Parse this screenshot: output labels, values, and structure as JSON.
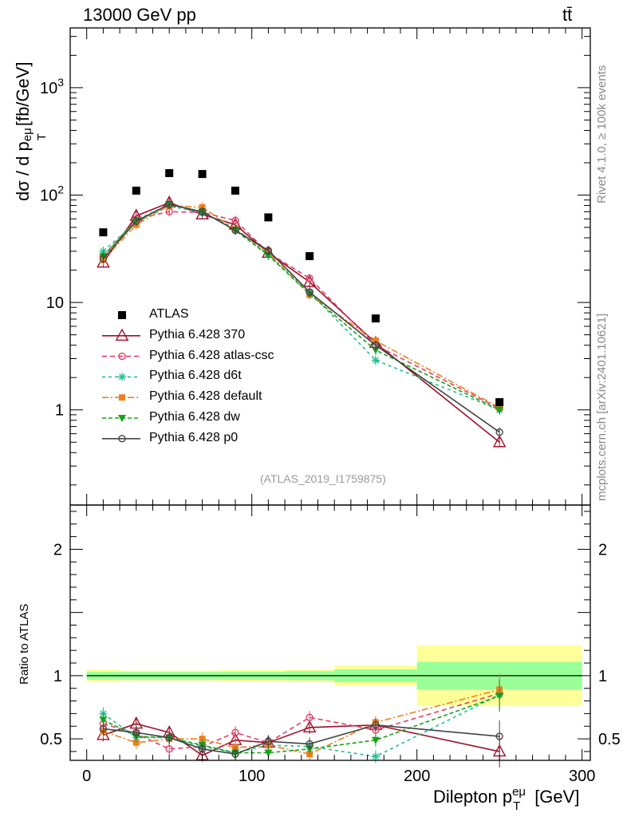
{
  "header": {
    "energy_label": "13000 GeV pp",
    "process_label": "tt̄"
  },
  "side_text": {
    "rivet": "Rivet 4.1.0, ≥ 100k events",
    "mcplots": "mcplots.cern.ch [arXiv:2401.10621]"
  },
  "analysis_ref": "(ATLAS_2019_I1759875)",
  "axis_labels": {
    "upper_y": "dσ / d p",
    "upper_y_sub": "T",
    "upper_y_sup": "eμ",
    "upper_y_unit": " [fb/GeV]",
    "lower_y": "Ratio to ATLAS",
    "x": "Dilepton p",
    "x_sub": "T",
    "x_sup": "eμ",
    "x_unit": " [GeV]"
  },
  "chart_data": {
    "type": "line",
    "x_range": [
      -10,
      305
    ],
    "upper": {
      "yscale": "log",
      "ylim": [
        0.13,
        3600
      ],
      "ticks": [
        1,
        10,
        100,
        1000
      ],
      "tick_labels": [
        "1",
        "10",
        "10^2",
        "10^3"
      ]
    },
    "lower": {
      "ylim": [
        0.33,
        2.35
      ],
      "ticks": [
        0.5,
        1,
        2
      ],
      "tick_labels": [
        "0.5",
        "1",
        "2"
      ]
    },
    "x_ticks": [
      0,
      100,
      200,
      300
    ],
    "x_tick_labels": [
      "0",
      "100",
      "200",
      "300"
    ],
    "bins": [
      [
        0,
        20
      ],
      [
        20,
        40
      ],
      [
        40,
        60
      ],
      [
        60,
        80
      ],
      [
        80,
        100
      ],
      [
        100,
        120
      ],
      [
        120,
        150
      ],
      [
        150,
        200
      ],
      [
        200,
        300
      ]
    ],
    "x_centers": [
      10,
      30,
      50,
      70,
      90,
      110,
      135,
      175,
      250
    ],
    "data": {
      "name": "ATLAS",
      "color": "#000000",
      "values": [
        45,
        110,
        160,
        157,
        110,
        62,
        27,
        7.1,
        1.18
      ],
      "band_inner": [
        0.03,
        0.03,
        0.03,
        0.03,
        0.03,
        0.03,
        0.035,
        0.05,
        0.11
      ],
      "band_outer": [
        0.05,
        0.04,
        0.04,
        0.04,
        0.045,
        0.045,
        0.05,
        0.08,
        0.24
      ]
    },
    "series": [
      {
        "name": "Pythia 6.428 370",
        "color": "#a0102a",
        "dash": "",
        "marker": "triangle-open",
        "values": [
          23.5,
          64,
          85,
          66,
          53,
          29,
          15.5,
          4.2,
          0.5
        ],
        "ratio": [
          0.53,
          0.62,
          0.55,
          0.37,
          0.49,
          0.47,
          0.59,
          0.61,
          0.4
        ]
      },
      {
        "name": "Pythia 6.428 atlas-csc",
        "color": "#e0406a",
        "dash": "6,4",
        "marker": "circle-open",
        "values": [
          27,
          60,
          70,
          69,
          58,
          29,
          16.8,
          4.0,
          1.03
        ],
        "ratio": [
          0.62,
          0.54,
          0.42,
          0.44,
          0.55,
          0.47,
          0.67,
          0.57,
          0.86
        ]
      },
      {
        "name": "Pythia 6.428 d6t",
        "color": "#20c090",
        "dash": "4,4",
        "marker": "star",
        "values": [
          30,
          56,
          79,
          69,
          49,
          28,
          12.5,
          2.9,
          1.0
        ],
        "ratio": [
          0.7,
          0.51,
          0.51,
          0.44,
          0.39,
          0.45,
          0.44,
          0.36,
          0.85
        ]
      },
      {
        "name": "Pythia 6.428 default",
        "color": "#f08020",
        "dash": "8,3,2,3",
        "marker": "square-filled",
        "values": [
          25,
          53,
          80,
          77,
          48,
          29,
          11.8,
          4.4,
          1.05
        ],
        "ratio": [
          0.56,
          0.47,
          0.5,
          0.5,
          0.43,
          0.45,
          0.38,
          0.63,
          0.89
        ]
      },
      {
        "name": "Pythia 6.428 dw",
        "color": "#1aa01a",
        "dash": "5,3",
        "marker": "triangle-down-filled",
        "values": [
          27,
          58,
          82,
          70,
          47,
          27.5,
          12,
          3.6,
          1.0
        ],
        "ratio": [
          0.65,
          0.52,
          0.51,
          0.45,
          0.39,
          0.39,
          0.42,
          0.49,
          0.84
        ]
      },
      {
        "name": "Pythia 6.428 p0",
        "color": "#444444",
        "dash": "",
        "marker": "circle-open",
        "values": [
          25.5,
          57,
          82,
          70,
          47,
          30.5,
          12.5,
          4.0,
          0.62
        ],
        "ratio": [
          0.58,
          0.55,
          0.51,
          0.42,
          0.38,
          0.48,
          0.46,
          0.61,
          0.52
        ]
      }
    ]
  }
}
